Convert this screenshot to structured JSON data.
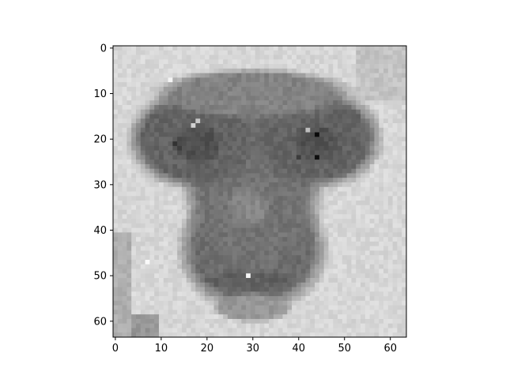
{
  "chart_data": {
    "type": "heatmap",
    "title": "",
    "xlabel": "",
    "ylabel": "",
    "colormap": "gray",
    "shape": [
      64,
      64
    ],
    "value_range": [
      0,
      255
    ],
    "xlim": [
      -0.5,
      63.5
    ],
    "ylim": [
      63.5,
      -0.5
    ],
    "xticks": [
      0,
      10,
      20,
      30,
      40,
      50,
      60
    ],
    "yticks": [
      0,
      10,
      20,
      30,
      40,
      50,
      60
    ],
    "xtick_labels": [
      "0",
      "10",
      "20",
      "30",
      "40",
      "50",
      "60"
    ],
    "ytick_labels": [
      "0",
      "10",
      "20",
      "30",
      "40",
      "50",
      "60"
    ],
    "image_description_note": "64x64 grayscale pixel image of a primate face (dark facial skin, light fur border), estimated intensities",
    "base_background": 215,
    "regions": [
      {
        "name": "face-lower",
        "shape": "ellipse",
        "cx": 30,
        "cy": 44,
        "rx": 15,
        "ry": 13,
        "value": 108
      },
      {
        "name": "face-center",
        "shape": "ellipse",
        "cx": 30,
        "cy": 30,
        "rx": 14,
        "ry": 18,
        "value": 115
      },
      {
        "name": "brow-left",
        "shape": "ellipse",
        "cx": 17,
        "cy": 20,
        "rx": 13,
        "ry": 10,
        "value": 100
      },
      {
        "name": "brow-right",
        "shape": "ellipse",
        "cx": 44,
        "cy": 20,
        "rx": 13,
        "ry": 10,
        "value": 100
      },
      {
        "name": "forehead",
        "shape": "ellipse",
        "cx": 30,
        "cy": 10,
        "rx": 20,
        "ry": 5,
        "value": 130
      },
      {
        "name": "eye-left",
        "shape": "ellipse",
        "cx": 18,
        "cy": 21,
        "rx": 5,
        "ry": 4,
        "value": 80
      },
      {
        "name": "eye-right",
        "shape": "ellipse",
        "cx": 44,
        "cy": 21,
        "rx": 5,
        "ry": 4,
        "value": 82
      },
      {
        "name": "nose",
        "shape": "ellipse",
        "cx": 29,
        "cy": 35,
        "rx": 4,
        "ry": 4,
        "value": 135
      },
      {
        "name": "mouth",
        "shape": "ellipse",
        "cx": 30,
        "cy": 51,
        "rx": 10,
        "ry": 2,
        "value": 95
      },
      {
        "name": "chin",
        "shape": "ellipse",
        "cx": 30,
        "cy": 57,
        "rx": 8,
        "ry": 3,
        "value": 150
      }
    ],
    "spots": [
      {
        "x": 44,
        "y": 19,
        "value": 10
      },
      {
        "x": 44,
        "y": 24,
        "value": 15
      },
      {
        "x": 17,
        "y": 17,
        "value": 210
      },
      {
        "x": 18,
        "y": 16,
        "value": 200
      },
      {
        "x": 7,
        "y": 47,
        "value": 250
      },
      {
        "x": 29,
        "y": 50,
        "value": 245
      },
      {
        "x": 42,
        "y": 18,
        "value": 190
      },
      {
        "x": 13,
        "y": 21,
        "value": 50
      },
      {
        "x": 14,
        "y": 22,
        "value": 60
      },
      {
        "x": 12,
        "y": 7,
        "value": 245
      },
      {
        "x": 40,
        "y": 24,
        "value": 60
      }
    ],
    "noise_amplitude": 22,
    "noise_seed": 12345
  }
}
